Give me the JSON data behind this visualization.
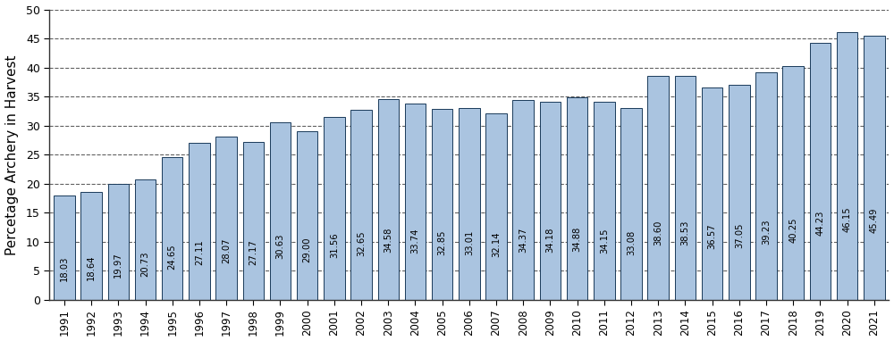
{
  "years": [
    "1991",
    "1992",
    "1993",
    "1994",
    "1995",
    "1996",
    "1997",
    "1998",
    "1999",
    "2000",
    "2001",
    "2002",
    "2003",
    "2004",
    "2005",
    "2006",
    "2007",
    "2008",
    "2009",
    "2010",
    "2011",
    "2012",
    "2013",
    "2014",
    "2015",
    "2016",
    "2017",
    "2018",
    "2019",
    "2020",
    "2021"
  ],
  "values": [
    18.03,
    18.64,
    19.97,
    20.73,
    24.65,
    27.11,
    28.07,
    27.17,
    30.63,
    29.0,
    31.56,
    32.65,
    34.58,
    33.74,
    32.85,
    33.01,
    32.14,
    34.37,
    34.18,
    34.88,
    34.15,
    33.08,
    38.6,
    38.53,
    36.57,
    37.05,
    39.23,
    40.25,
    44.23,
    46.15,
    45.49
  ],
  "bar_color": "#aac4e0",
  "bar_edge_color": "#1a3a5a",
  "ylabel": "Percetage Archery in Harvest",
  "ylim": [
    0,
    50
  ],
  "yticks": [
    0,
    5,
    10,
    15,
    20,
    25,
    30,
    35,
    40,
    45,
    50
  ],
  "grid_color": "#444444",
  "bg_color": "#ffffff",
  "label_fontsize": 7.2,
  "axis_label_fontsize": 11,
  "bar_width": 0.78,
  "xtick_fontsize": 8.5,
  "ytick_fontsize": 9
}
